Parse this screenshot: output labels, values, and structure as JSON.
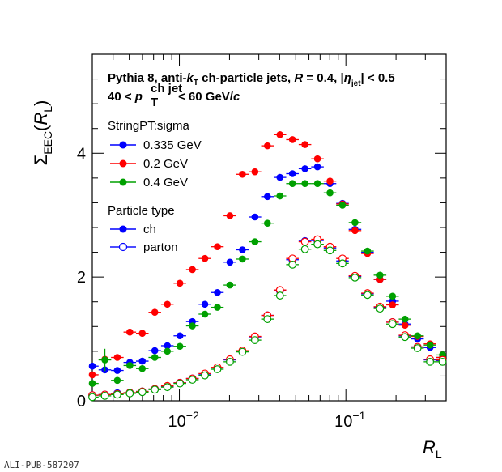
{
  "footer_id": "ALI-PUB-587207",
  "title_line1": "Pythia 8, anti-k ch-particle jets,  R = 0.4, |η| < 0.5",
  "title_line1_parts": {
    "a": "Pythia 8, anti-",
    "k": "k",
    "T": "T",
    "b": " ch-particle jets,  ",
    "R": "R",
    "c": " = 0.4, |",
    "eta": "η",
    "jet": "jet",
    "d": "| < 0.5"
  },
  "title_line2_parts": {
    "a": "40 < ",
    "p": "p",
    "sup": "ch jet",
    "sub": "T",
    "b": " < 60 GeV/",
    "c": "c"
  },
  "legend_sigma": {
    "header": "StringPT:sigma",
    "entries": [
      {
        "label": "0.335 GeV",
        "color": "#0000ff"
      },
      {
        "label": "0.2 GeV",
        "color": "#ff0000"
      },
      {
        "label": "0.4 GeV",
        "color": "#00a000"
      }
    ]
  },
  "legend_type": {
    "header": "Particle type",
    "entries": [
      {
        "label": "ch",
        "marker": "filled"
      },
      {
        "label": "parton",
        "marker": "open"
      }
    ]
  },
  "chart_data": {
    "type": "scatter",
    "xscale": "log",
    "xlim": [
      0.003,
      0.4
    ],
    "ylim": [
      0,
      5.6
    ],
    "ylabel": "Σ_EEC (R_L)",
    "ylabel_parts": {
      "sigma": "Σ",
      "sub": "EEC",
      "open": "(",
      "R": "R",
      "L": "L",
      "close": ")"
    },
    "xlabel_parts": {
      "R": "R",
      "L": "L"
    },
    "yticks": [
      0,
      2,
      4
    ],
    "xtick_labels": [
      {
        "base": "10",
        "exp": "−2"
      },
      {
        "base": "10",
        "exp": "−1"
      }
    ],
    "series": [
      {
        "name": "0.335 GeV, ch",
        "color": "#0000ff",
        "filled": true,
        "x": [
          0.003,
          0.00357,
          0.00424,
          0.00504,
          0.00599,
          0.00712,
          0.00847,
          0.01007,
          0.01197,
          0.01423,
          0.01692,
          0.02011,
          0.02391,
          0.02843,
          0.0338,
          0.04018,
          0.04776,
          0.05678,
          0.0675,
          0.08025,
          0.0954,
          0.1134,
          0.1348,
          0.1603,
          0.1906,
          0.2265,
          0.2693,
          0.3202,
          0.3806
        ],
        "y": [
          0.56,
          0.5,
          0.49,
          0.62,
          0.64,
          0.81,
          0.89,
          1.05,
          1.28,
          1.56,
          1.75,
          2.24,
          2.44,
          2.97,
          3.3,
          3.61,
          3.67,
          3.75,
          3.78,
          3.51,
          3.19,
          2.77,
          2.4,
          1.96,
          1.61,
          1.24,
          1.0,
          0.86,
          0.7
        ]
      },
      {
        "name": "0.2 GeV, ch",
        "color": "#ff0000",
        "filled": true,
        "x": [
          0.003,
          0.00357,
          0.00424,
          0.00504,
          0.00599,
          0.00712,
          0.00847,
          0.01007,
          0.01197,
          0.01423,
          0.01692,
          0.02011,
          0.02391,
          0.02843,
          0.0338,
          0.04018,
          0.04776,
          0.05678,
          0.0675,
          0.08025,
          0.0954,
          0.1134,
          0.1348,
          0.1603,
          0.1906,
          0.2265,
          0.2693,
          0.3202,
          0.3806
        ],
        "y": [
          0.42,
          0.67,
          0.7,
          1.11,
          1.09,
          1.43,
          1.56,
          1.9,
          2.12,
          2.3,
          2.49,
          2.99,
          3.66,
          3.7,
          4.12,
          4.3,
          4.22,
          4.14,
          3.91,
          3.55,
          3.18,
          2.75,
          2.38,
          1.96,
          1.55,
          1.22,
          1.04,
          0.92,
          0.7
        ]
      },
      {
        "name": "0.4 GeV, ch",
        "color": "#00a000",
        "filled": true,
        "x": [
          0.003,
          0.00357,
          0.00424,
          0.00504,
          0.00599,
          0.00712,
          0.00847,
          0.01007,
          0.01197,
          0.01423,
          0.01692,
          0.02011,
          0.02391,
          0.02843,
          0.0338,
          0.04018,
          0.04776,
          0.05678,
          0.0675,
          0.08025,
          0.0954,
          0.1134,
          0.1348,
          0.1603,
          0.1906,
          0.2265,
          0.2693,
          0.3202,
          0.3806
        ],
        "y": [
          0.28,
          0.66,
          0.33,
          0.57,
          0.52,
          0.7,
          0.8,
          0.88,
          1.21,
          1.4,
          1.51,
          1.87,
          2.29,
          2.57,
          2.87,
          3.31,
          3.51,
          3.51,
          3.51,
          3.36,
          3.16,
          2.88,
          2.42,
          2.03,
          1.69,
          1.32,
          1.05,
          0.9,
          0.74
        ]
      },
      {
        "name": "0.335 GeV, parton",
        "color": "#0000ff",
        "filled": false,
        "x": [
          0.003,
          0.00357,
          0.00424,
          0.00504,
          0.00599,
          0.00712,
          0.00847,
          0.01007,
          0.01197,
          0.01423,
          0.01692,
          0.02011,
          0.02391,
          0.02843,
          0.0338,
          0.04018,
          0.04776,
          0.05678,
          0.0675,
          0.08025,
          0.0954,
          0.1134,
          0.1348,
          0.1603,
          0.1906,
          0.2265,
          0.2693,
          0.3202,
          0.3806
        ],
        "y": [
          0.09,
          0.1,
          0.12,
          0.13,
          0.15,
          0.19,
          0.23,
          0.29,
          0.36,
          0.43,
          0.53,
          0.66,
          0.8,
          1.02,
          1.38,
          1.78,
          2.28,
          2.58,
          2.59,
          2.47,
          2.26,
          2.01,
          1.73,
          1.51,
          1.27,
          1.05,
          0.87,
          0.66,
          0.65
        ]
      },
      {
        "name": "0.2 GeV, parton",
        "color": "#ff0000",
        "filled": false,
        "x": [
          0.003,
          0.00357,
          0.00424,
          0.00504,
          0.00599,
          0.00712,
          0.00847,
          0.01007,
          0.01197,
          0.01423,
          0.01692,
          0.02011,
          0.02391,
          0.02843,
          0.0338,
          0.04018,
          0.04776,
          0.05678,
          0.0675,
          0.08025,
          0.0954,
          0.1134,
          0.1348,
          0.1603,
          0.1906,
          0.2265,
          0.2693,
          0.3202,
          0.3806
        ],
        "y": [
          0.09,
          0.1,
          0.11,
          0.13,
          0.15,
          0.19,
          0.24,
          0.29,
          0.36,
          0.44,
          0.54,
          0.67,
          0.81,
          1.04,
          1.38,
          1.79,
          2.3,
          2.57,
          2.61,
          2.49,
          2.3,
          2.02,
          1.74,
          1.52,
          1.27,
          1.06,
          0.87,
          0.67,
          0.66
        ]
      },
      {
        "name": "0.4 GeV, parton",
        "color": "#00a000",
        "filled": false,
        "x": [
          0.003,
          0.00357,
          0.00424,
          0.00504,
          0.00599,
          0.00712,
          0.00847,
          0.01007,
          0.01197,
          0.01423,
          0.01692,
          0.02011,
          0.02391,
          0.02843,
          0.0338,
          0.04018,
          0.04776,
          0.05678,
          0.0675,
          0.08025,
          0.0954,
          0.1134,
          0.1348,
          0.1603,
          0.1906,
          0.2265,
          0.2693,
          0.3202,
          0.3806
        ],
        "y": [
          0.06,
          0.08,
          0.1,
          0.12,
          0.14,
          0.18,
          0.22,
          0.28,
          0.34,
          0.41,
          0.51,
          0.63,
          0.79,
          0.98,
          1.32,
          1.7,
          2.2,
          2.45,
          2.53,
          2.43,
          2.22,
          1.99,
          1.71,
          1.49,
          1.24,
          1.03,
          0.85,
          0.63,
          0.63
        ]
      }
    ],
    "error_bars": {
      "series": "0.4 GeV, ch",
      "index": 1,
      "err": 0.18
    }
  }
}
